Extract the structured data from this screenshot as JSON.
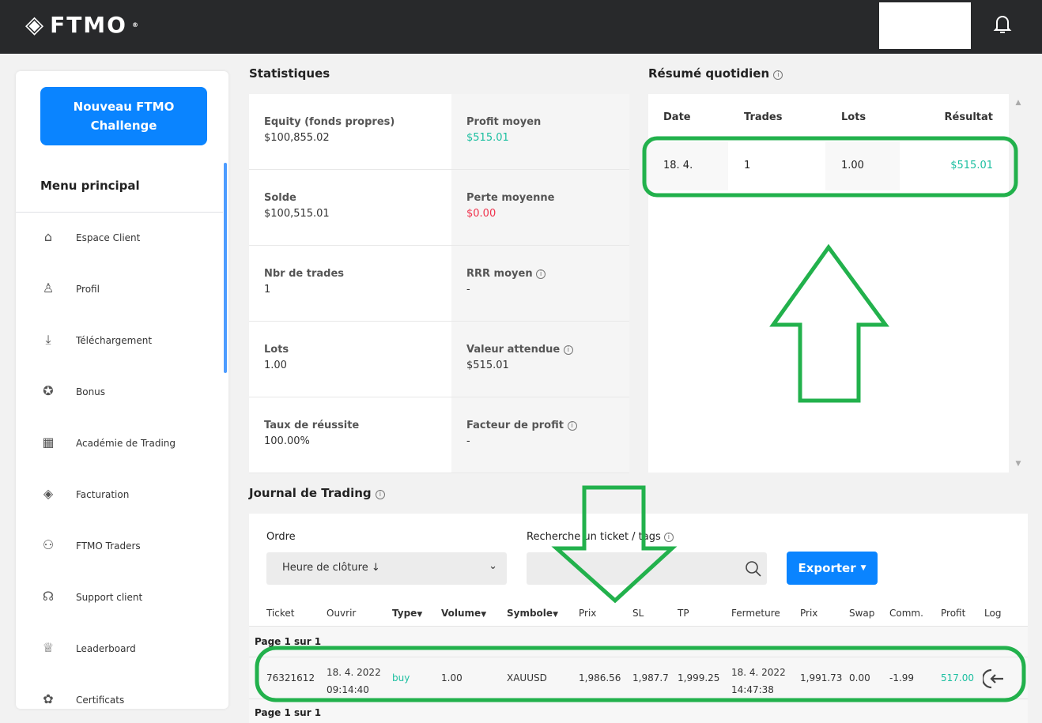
{
  "header": {
    "logo": "FTMO",
    "bell_icon": "bell-icon"
  },
  "sidebar": {
    "new_button": "Nouveau FTMO Challenge",
    "menu_title": "Menu principal",
    "items": [
      {
        "label": "Espace Client",
        "icon": "⌂"
      },
      {
        "label": "Profil",
        "icon": "♙"
      },
      {
        "label": "Téléchargement",
        "icon": "⤓"
      },
      {
        "label": "Bonus",
        "icon": "✪"
      },
      {
        "label": "Académie de Trading",
        "icon": "▦"
      },
      {
        "label": "Facturation",
        "icon": "◈"
      },
      {
        "label": "FTMO Traders",
        "icon": "⚇"
      },
      {
        "label": "Support client",
        "icon": "☊"
      },
      {
        "label": "Leaderboard",
        "icon": "♕"
      },
      {
        "label": "Certificats",
        "icon": "✿"
      }
    ]
  },
  "stats": {
    "title": "Statistiques",
    "items": [
      {
        "label": "Equity (fonds propres)",
        "value": "$100,855.02"
      },
      {
        "label": "Profit moyen",
        "value": "$515.01",
        "color": "#1bbfa0"
      },
      {
        "label": "Solde",
        "value": "$100,515.01"
      },
      {
        "label": "Perte moyenne",
        "value": "$0.00",
        "color": "#f0334d"
      },
      {
        "label": "Nbr de trades",
        "value": "1"
      },
      {
        "label": "RRR moyen",
        "value": "-",
        "info": true
      },
      {
        "label": "Lots",
        "value": "1.00"
      },
      {
        "label": "Valeur attendue",
        "value": "$515.01",
        "info": true
      },
      {
        "label": "Taux de réussite",
        "value": "100.00%"
      },
      {
        "label": "Facteur de profit",
        "value": "-",
        "info": true
      }
    ]
  },
  "daily": {
    "title": "Résumé quotidien",
    "headers": [
      "Date",
      "Trades",
      "Lots",
      "Résultat"
    ],
    "rows": [
      [
        "18. 4.",
        "1",
        "1.00",
        "$515.01"
      ]
    ]
  },
  "journal": {
    "title": "Journal de Trading",
    "order_label": "Ordre",
    "order_value": "Heure de clôture ↓",
    "search_label": "Recherche un ticket / tags",
    "export": "Exporter",
    "headers": [
      "Ticket",
      "Ouvrir",
      "Type",
      "Volume",
      "Symbole",
      "Prix",
      "SL",
      "TP",
      "Fermeture",
      "Prix",
      "Swap",
      "Comm.",
      "Profit",
      "Log"
    ],
    "page": "Page 1 sur 1",
    "row": {
      "ticket": "76321612",
      "open_date": "18. 4. 2022",
      "open_time": "09:14:40",
      "type": "buy",
      "volume": "1.00",
      "symbol": "XAUUSD",
      "price": "1,986.56",
      "sl": "1,987.7",
      "tp": "1,999.25",
      "close_date": "18. 4. 2022",
      "close_time": "14:47:38",
      "close_price": "1,991.73",
      "swap": "0.00",
      "comm": "-1.99",
      "profit": "517.00"
    }
  },
  "colors": {
    "accent": "#0a84ff",
    "profit": "#1bbfa0",
    "loss": "#f0334d",
    "annotation": "#22b14c"
  }
}
